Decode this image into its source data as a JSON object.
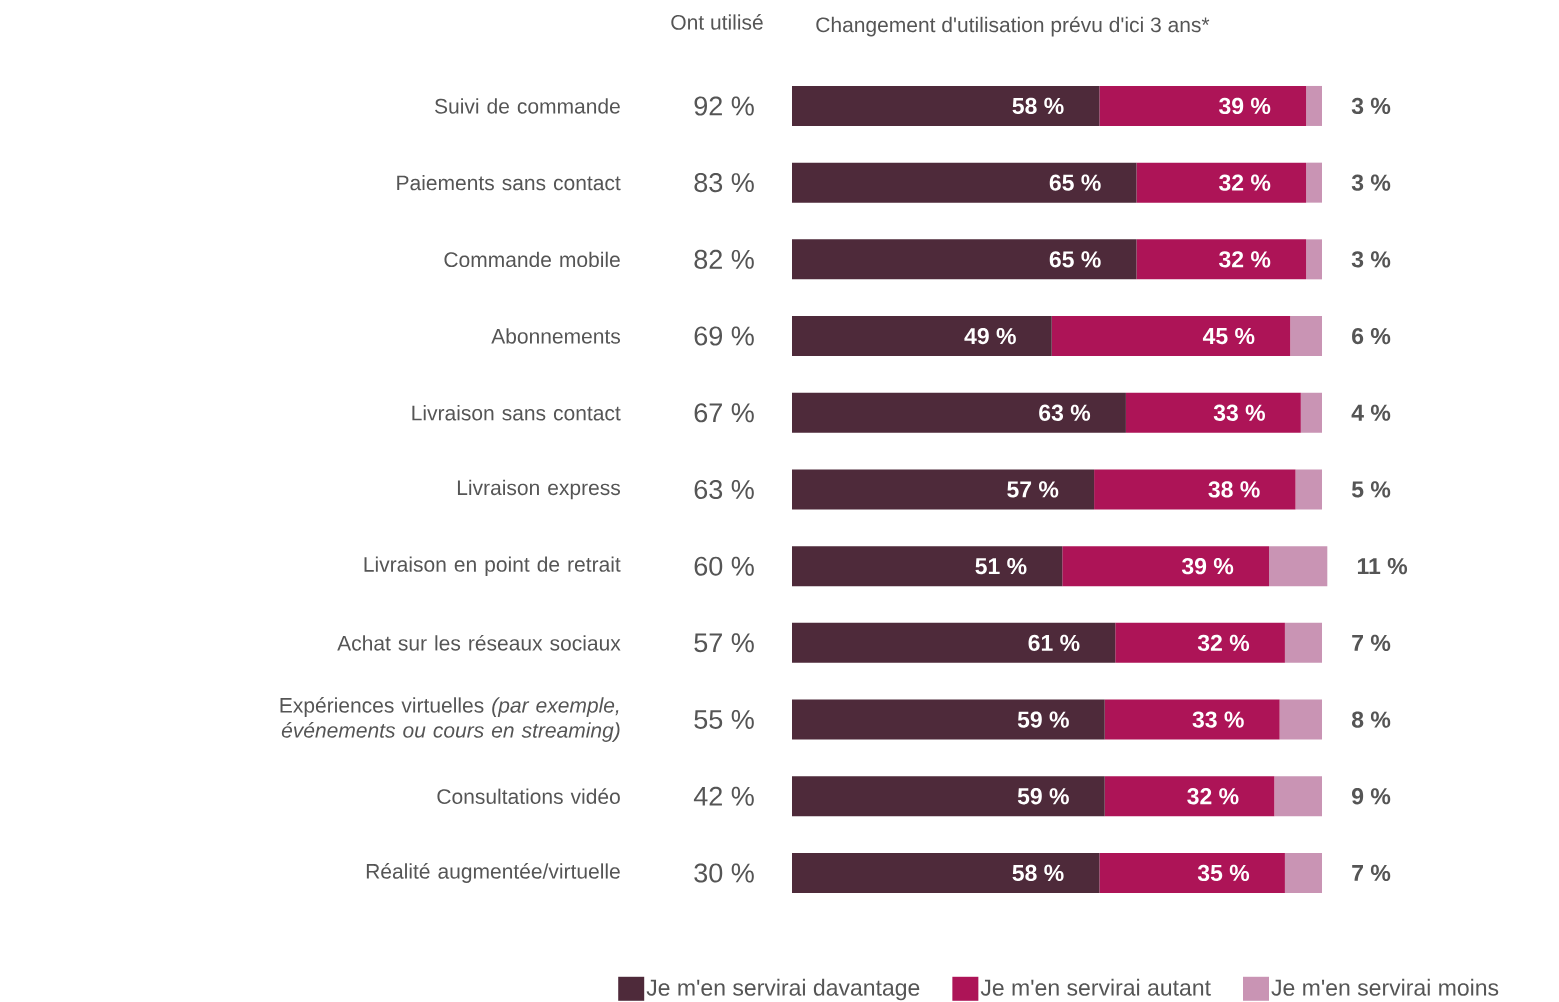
{
  "chart_data": [
    {
      "type": "other",
      "title": "Ont utilisé",
      "categories": [
        "Suivi de commande",
        "Paiements sans contact",
        "Commande mobile",
        "Abonnements",
        "Livraison sans contact",
        "Livraison express",
        "Livraison en point de retrait",
        "Achat sur les réseaux sociaux",
        "Expériences virtuelles *(par exemple, événements ou cours en streaming)*",
        "Consultations vidéo",
        "Réalité augmentée/virtuelle"
      ],
      "value_labels": [
        "92 %",
        "83 %",
        "82 %",
        "69 %",
        "67 %",
        "63 %",
        "60 %",
        "57 %",
        "55 %",
        "42 %",
        "30 %"
      ]
    },
    {
      "type": "bar",
      "orientation": "horizontal",
      "stacked": true,
      "title": "Changement d'utilisation prévu d'ici 3 ans*",
      "categories": [
        null,
        null,
        null,
        null,
        null,
        null,
        null,
        null,
        null,
        null,
        null
      ],
      "legend": "bottom",
      "series": [
        {
          "name": "Je m'en servirai davantage",
          "color": "#4e2a3a",
          "values": [
            58,
            65,
            65,
            49,
            63,
            57,
            51,
            61,
            59,
            59,
            58
          ],
          "value_labels": [
            "58 %",
            "65 %",
            "65 %",
            "49 %",
            "63 %",
            "57 %",
            "51 %",
            "61 %",
            "59 %",
            "59 %",
            "58 %"
          ]
        },
        {
          "name": "Je m'en servirai autant",
          "color": "#ad1457",
          "values": [
            39,
            32,
            32,
            45,
            33,
            38,
            39,
            32,
            33,
            32,
            35
          ],
          "value_labels": [
            "39 %",
            "32 %",
            "32 %",
            "45 %",
            "33 %",
            "38 %",
            "39 %",
            "32 %",
            "33 %",
            "32 %",
            "35 %"
          ]
        },
        {
          "name": "Je m'en servirai moins",
          "color": "#c994b4",
          "values": [
            3,
            3,
            3,
            6,
            4,
            5,
            11,
            7,
            8,
            9,
            7
          ],
          "value_labels": [
            "3 %",
            "3 %",
            "3 %",
            "6 %",
            "4 %",
            "5 %",
            "11 %",
            "7 %",
            "8 %",
            "9 %",
            "7 %"
          ]
        }
      ]
    }
  ]
}
